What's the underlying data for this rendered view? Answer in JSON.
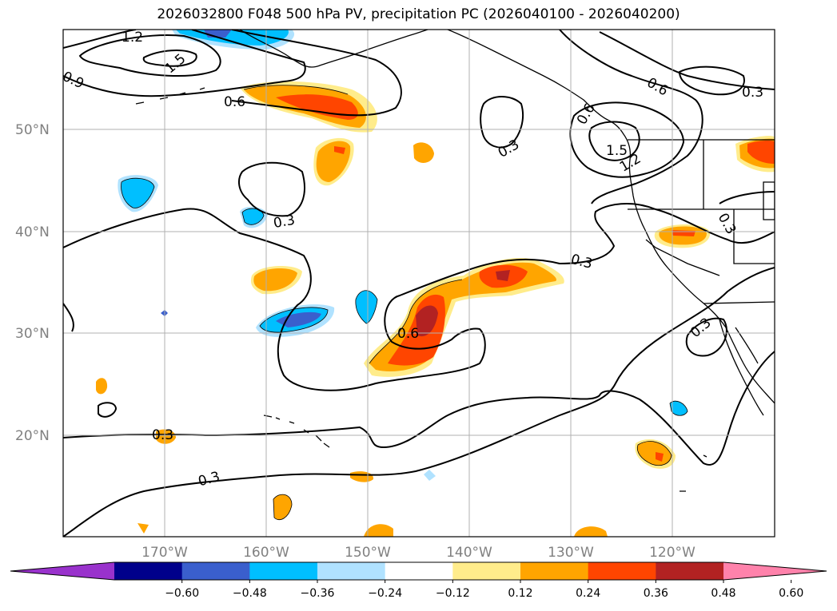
{
  "title": "2026032800 F048 500 hPa PV, precipitation PC (2026040100 - 2026040200)",
  "lat_labels": [
    "50°N",
    "40°N",
    "30°N",
    "20°N"
  ],
  "lon_labels": [
    "170°W",
    "160°W",
    "150°W",
    "140°W",
    "130°W",
    "120°W"
  ],
  "contour_labels": [
    "1.2",
    "1.5",
    "0.9",
    "0.6",
    "0.6",
    "0.3",
    "0.6",
    "0.3",
    "1.5",
    "1.2",
    "0.3",
    "0.3",
    "0.3",
    "0.6",
    "0.3",
    "0.3",
    "0.3"
  ],
  "colorbar": {
    "ticks": [
      "−0.60",
      "−0.48",
      "−0.36",
      "−0.24",
      "−0.12",
      "0.12",
      "0.24",
      "0.36",
      "0.48",
      "0.60"
    ],
    "colors": [
      "#9932cc",
      "#00008b",
      "#3a5fcd",
      "#00bfff",
      "#b0e2ff",
      "#ffffff",
      "#ffec8b",
      "#ffa500",
      "#ff4500",
      "#b22222",
      "#ff82ab"
    ]
  }
}
